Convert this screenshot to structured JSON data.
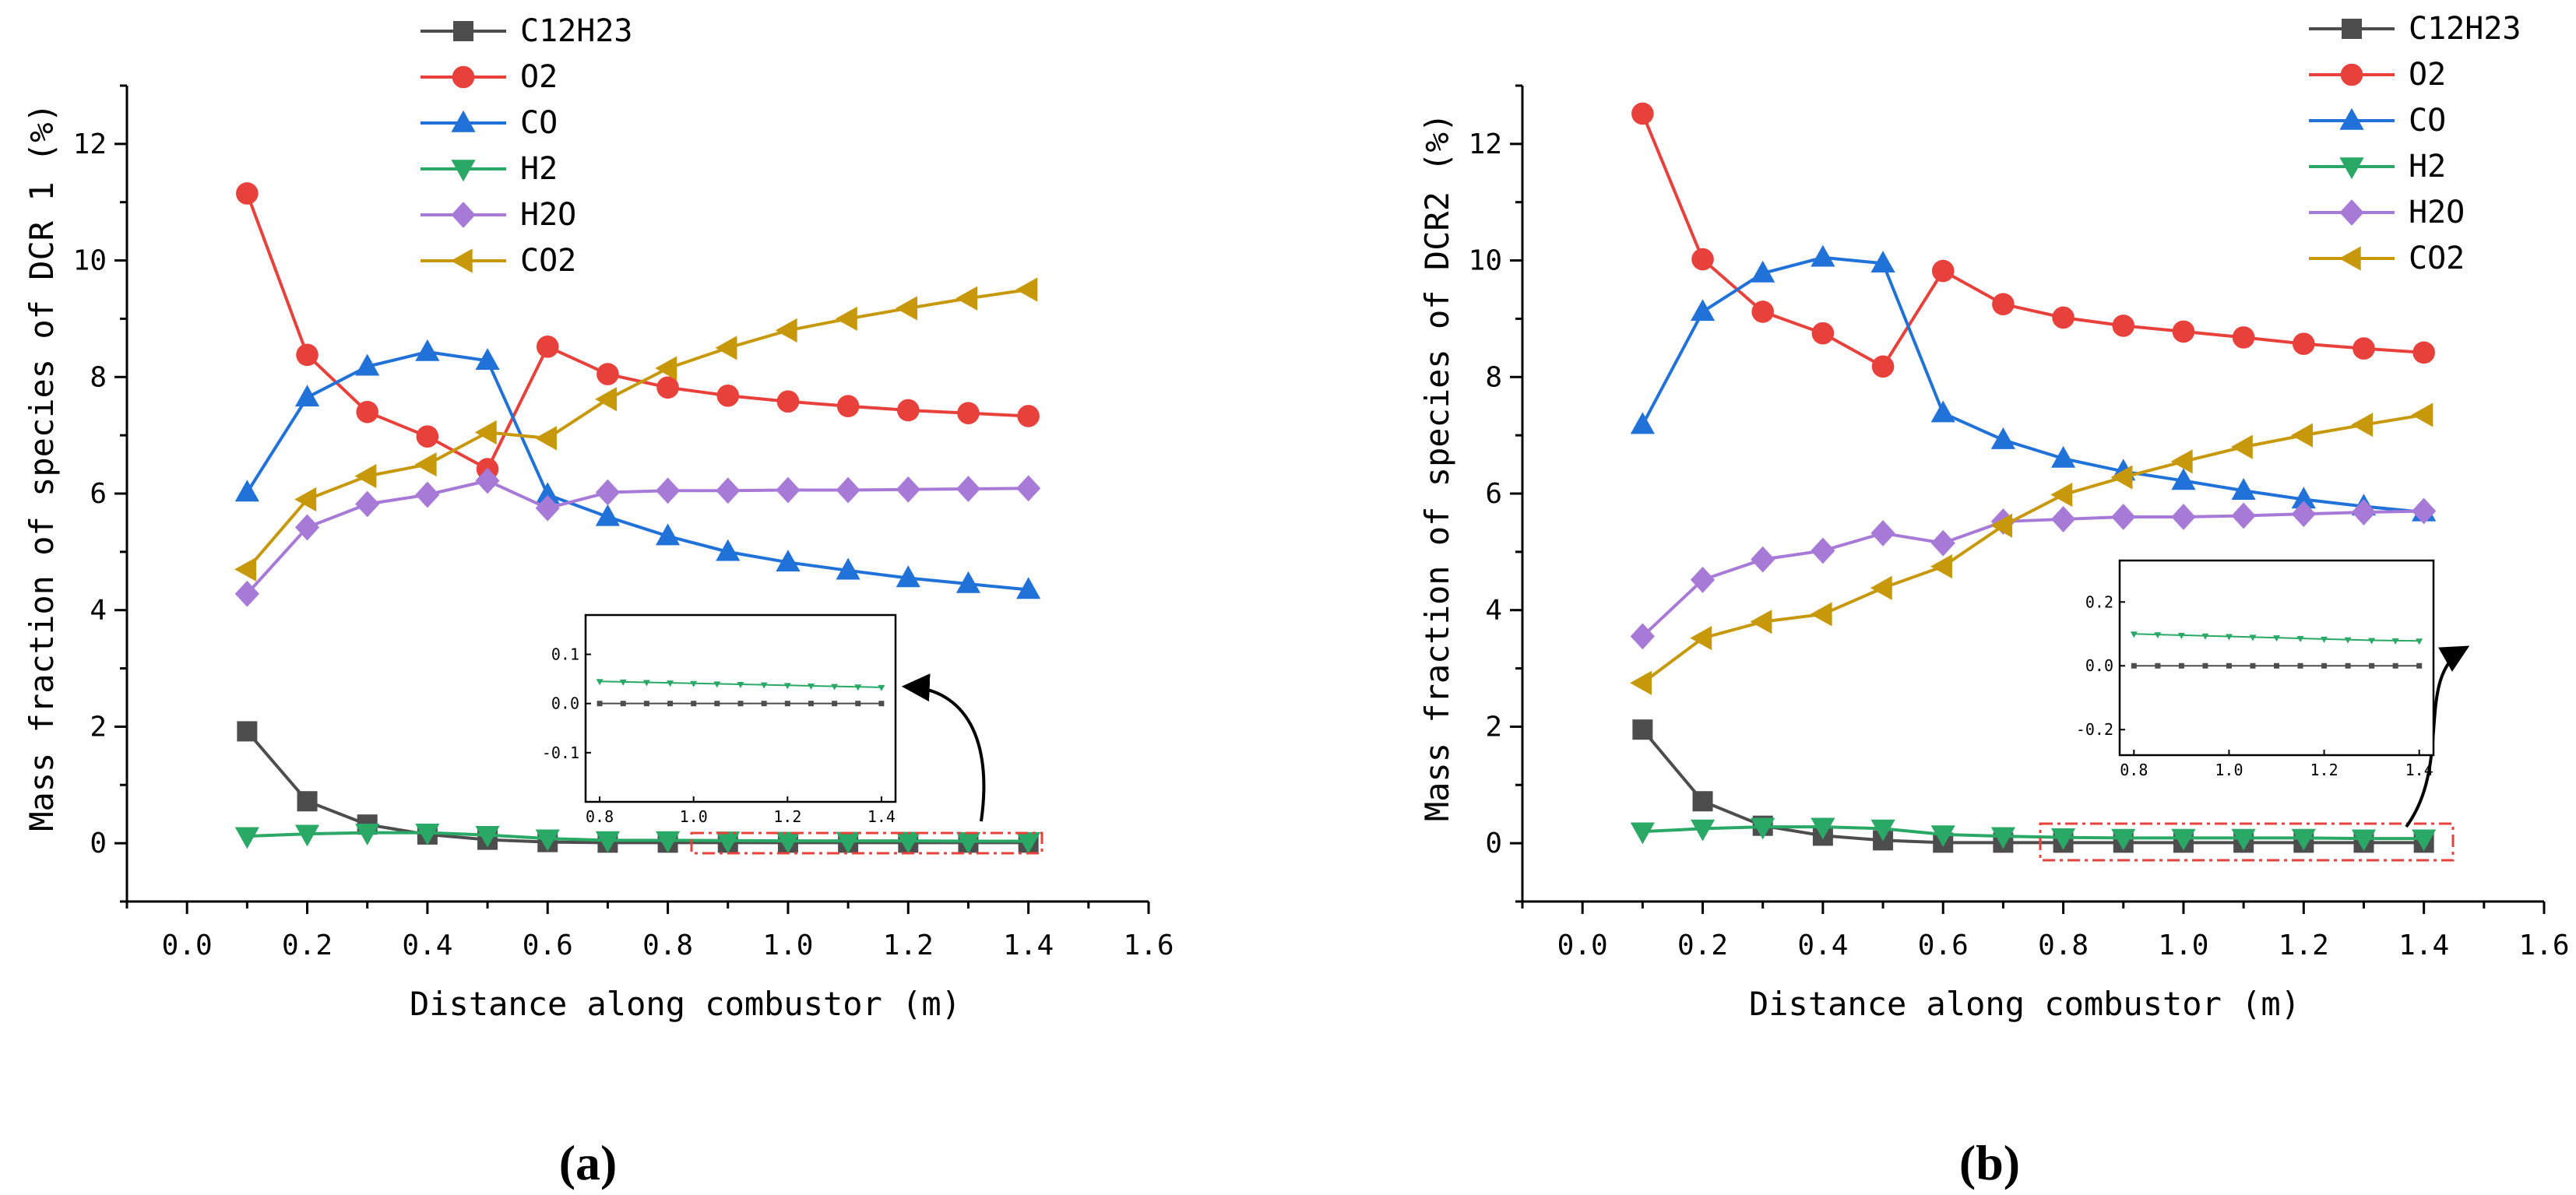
{
  "chart_data": [
    {
      "type": "line",
      "panel_label": "(a)",
      "xlabel": "Distance along combustor (m)",
      "ylabel": "Mass fraction of species of DCR 1 (%)",
      "xlim": [
        -0.1,
        1.6
      ],
      "ylim": [
        -1,
        13
      ],
      "xticks": [
        "0.0",
        "0.2",
        "0.4",
        "0.6",
        "0.8",
        "1.0",
        "1.2",
        "1.4",
        "1.6"
      ],
      "yticks": [
        "0",
        "2",
        "4",
        "6",
        "8",
        "10",
        "12"
      ],
      "x": [
        0.1,
        0.2,
        0.3,
        0.4,
        0.5,
        0.6,
        0.7,
        0.8,
        0.9,
        1.0,
        1.1,
        1.2,
        1.3,
        1.4
      ],
      "series": [
        {
          "name": "C12H23",
          "color": "#4d4d4d",
          "marker": "square",
          "values": [
            1.92,
            0.72,
            0.32,
            0.15,
            0.06,
            0.02,
            0.01,
            0.01,
            0.01,
            0.01,
            0.01,
            0.01,
            0.01,
            0.01
          ]
        },
        {
          "name": "O2",
          "color": "#e8403a",
          "marker": "circle",
          "values": [
            11.15,
            8.38,
            7.4,
            6.98,
            6.42,
            8.52,
            8.05,
            7.82,
            7.68,
            7.58,
            7.5,
            7.43,
            7.38,
            7.33
          ]
        },
        {
          "name": "CO",
          "color": "#2072d8",
          "marker": "triangle-up",
          "values": [
            6.02,
            7.65,
            8.18,
            8.43,
            8.28,
            5.98,
            5.6,
            5.27,
            5.0,
            4.82,
            4.68,
            4.55,
            4.45,
            4.35
          ]
        },
        {
          "name": "H2",
          "color": "#2aa866",
          "marker": "triangle-down",
          "values": [
            0.12,
            0.16,
            0.18,
            0.18,
            0.14,
            0.08,
            0.05,
            0.05,
            0.045,
            0.04,
            0.04,
            0.04,
            0.035,
            0.035
          ]
        },
        {
          "name": "H2O",
          "color": "#a87ad8",
          "marker": "diamond",
          "values": [
            4.28,
            5.42,
            5.82,
            5.98,
            6.22,
            5.75,
            6.02,
            6.05,
            6.05,
            6.06,
            6.06,
            6.07,
            6.08,
            6.09
          ]
        },
        {
          "name": "CO2",
          "color": "#c7990a",
          "marker": "triangle-left",
          "values": [
            4.7,
            5.9,
            6.3,
            6.5,
            7.05,
            6.95,
            7.62,
            8.15,
            8.5,
            8.8,
            9.0,
            9.18,
            9.35,
            9.5
          ]
        }
      ],
      "inset": {
        "xlim": [
          0.77,
          1.43
        ],
        "ylim": [
          -0.2,
          0.18
        ],
        "xticks": [
          "0.8",
          "1.0",
          "1.2",
          "1.4"
        ],
        "yticks": [
          "0.1",
          "0.0",
          "-0.1"
        ],
        "x": [
          0.8,
          0.85,
          0.9,
          0.95,
          1.0,
          1.05,
          1.1,
          1.15,
          1.2,
          1.25,
          1.3,
          1.35,
          1.4
        ],
        "series": [
          {
            "name": "C12H23",
            "color": "#4d4d4d",
            "values": [
              0,
              0,
              0,
              0,
              0,
              0,
              0,
              0,
              0,
              0,
              0,
              0,
              0
            ]
          },
          {
            "name": "H2",
            "color": "#2aa866",
            "values": [
              0.045,
              0.044,
              0.043,
              0.042,
              0.041,
              0.04,
              0.039,
              0.038,
              0.037,
              0.036,
              0.035,
              0.034,
              0.033
            ]
          }
        ]
      }
    },
    {
      "type": "line",
      "panel_label": "(b)",
      "xlabel": "Distance along combustor (m)",
      "ylabel": "Mass fraction of species of DCR2 (%)",
      "xlim": [
        -0.1,
        1.6
      ],
      "ylim": [
        -1,
        13
      ],
      "xticks": [
        "0.0",
        "0.2",
        "0.4",
        "0.6",
        "0.8",
        "1.0",
        "1.2",
        "1.4",
        "1.6"
      ],
      "yticks": [
        "0",
        "2",
        "4",
        "6",
        "8",
        "10",
        "12"
      ],
      "x": [
        0.1,
        0.2,
        0.3,
        0.4,
        0.5,
        0.6,
        0.7,
        0.8,
        0.9,
        1.0,
        1.1,
        1.2,
        1.3,
        1.4
      ],
      "series": [
        {
          "name": "C12H23",
          "color": "#4d4d4d",
          "marker": "square",
          "values": [
            1.95,
            0.72,
            0.3,
            0.13,
            0.05,
            0.01,
            0.01,
            0.01,
            0.01,
            0.01,
            0.01,
            0.01,
            0.01,
            0.01
          ]
        },
        {
          "name": "O2",
          "color": "#e8403a",
          "marker": "circle",
          "values": [
            12.52,
            10.02,
            9.12,
            8.75,
            8.18,
            9.82,
            9.25,
            9.02,
            8.88,
            8.78,
            8.68,
            8.57,
            8.49,
            8.42
          ]
        },
        {
          "name": "CO",
          "color": "#2072d8",
          "marker": "triangle-up",
          "values": [
            7.18,
            9.12,
            9.78,
            10.05,
            9.95,
            7.38,
            6.92,
            6.6,
            6.38,
            6.22,
            6.05,
            5.9,
            5.78,
            5.68
          ]
        },
        {
          "name": "H2",
          "color": "#2aa866",
          "marker": "triangle-down",
          "values": [
            0.2,
            0.25,
            0.28,
            0.28,
            0.25,
            0.15,
            0.12,
            0.1,
            0.09,
            0.09,
            0.09,
            0.09,
            0.08,
            0.08
          ]
        },
        {
          "name": "H2O",
          "color": "#a87ad8",
          "marker": "diamond",
          "values": [
            3.55,
            4.52,
            4.87,
            5.02,
            5.32,
            5.15,
            5.52,
            5.56,
            5.6,
            5.6,
            5.62,
            5.65,
            5.68,
            5.7
          ]
        },
        {
          "name": "CO2",
          "color": "#c7990a",
          "marker": "triangle-left",
          "values": [
            2.75,
            3.52,
            3.8,
            3.93,
            4.38,
            4.75,
            5.45,
            5.98,
            6.28,
            6.55,
            6.8,
            7.0,
            7.18,
            7.35
          ]
        }
      ],
      "inset": {
        "xlim": [
          0.77,
          1.43
        ],
        "ylim": [
          -0.28,
          0.33
        ],
        "xticks": [
          "0.8",
          "1.0",
          "1.2",
          "1.4"
        ],
        "yticks": [
          "0.2",
          "0.0",
          "-0.2"
        ],
        "x": [
          0.8,
          0.85,
          0.9,
          0.95,
          1.0,
          1.05,
          1.1,
          1.15,
          1.2,
          1.25,
          1.3,
          1.35,
          1.4
        ],
        "series": [
          {
            "name": "C12H23",
            "color": "#4d4d4d",
            "values": [
              0,
              0,
              0,
              0,
              0,
              0,
              0,
              0,
              0,
              0,
              0,
              0,
              0
            ]
          },
          {
            "name": "H2",
            "color": "#2aa866",
            "values": [
              0.1,
              0.098,
              0.096,
              0.094,
              0.092,
              0.09,
              0.088,
              0.086,
              0.084,
              0.082,
              0.08,
              0.079,
              0.078
            ]
          }
        ]
      }
    }
  ]
}
